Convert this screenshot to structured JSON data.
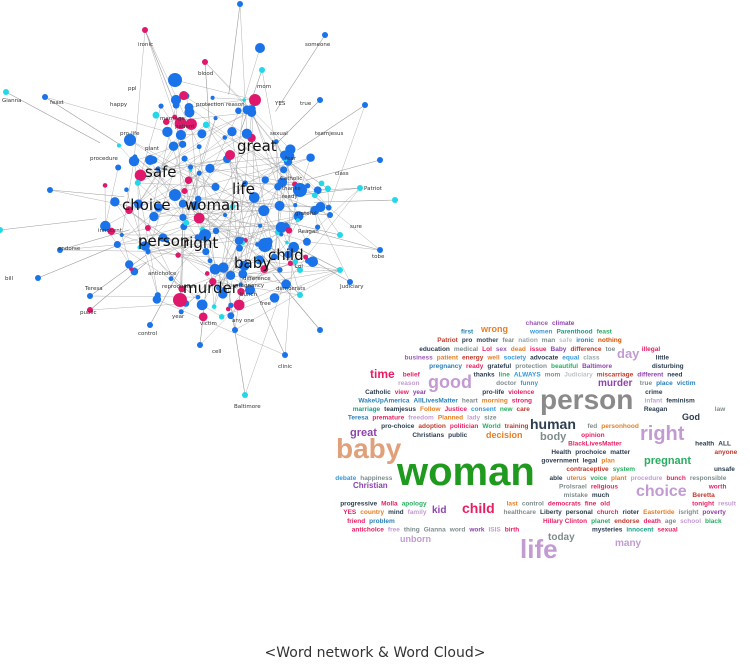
{
  "caption": "<Word network & Word Cloud>",
  "colors": {
    "node_blue": "#1a73e8",
    "node_pink": "#e0186c",
    "node_cyan": "#22d8e8",
    "edge": "#9a9a9a"
  },
  "network": {
    "large_labels": [
      "great",
      "safe",
      "life",
      "choice",
      "woman",
      "person",
      "right",
      "child",
      "baby",
      "murder"
    ],
    "small_labels": [
      "ironic",
      "someone",
      "mom",
      "blood",
      "Gianna",
      "feast",
      "happy",
      "ppl",
      "protection",
      "reason",
      "YES",
      "true",
      "marriage",
      "patient",
      "pro-life",
      "sexual",
      "teamjesus",
      "procedure",
      "plant",
      "fear",
      "Catholic",
      "class",
      "Patriot",
      "thanks",
      "ready",
      "Reagan",
      "Teresa",
      "bill",
      "innocent",
      "endorse",
      "sure",
      "tobe",
      "Lol",
      "Judiciary",
      "free",
      "democrats",
      "public",
      "year",
      "any one",
      "control",
      "cell",
      "clinic",
      "Baltimore",
      "anticholce",
      "reproductive",
      "bunch",
      "pregnancy",
      "victim",
      "difference",
      "grateful"
    ]
  },
  "wordcloud": {
    "words": [
      {
        "t": "chance",
        "c": "#9b59b6"
      },
      {
        "t": "climate",
        "c": "#8e44ad"
      },
      {
        "t": "first",
        "c": "#2980b9"
      },
      {
        "t": "women",
        "c": "#3498db"
      },
      {
        "t": "Parenthood",
        "c": "#16a085"
      },
      {
        "t": "feast",
        "c": "#27ae60"
      },
      {
        "t": "Patriot",
        "c": "#c0392b"
      },
      {
        "t": "pro",
        "c": "#2c3e50"
      },
      {
        "t": "mother",
        "c": "#34495e"
      },
      {
        "t": "fear",
        "c": "#7f8c8d"
      },
      {
        "t": "nation",
        "c": "#95a5a6"
      },
      {
        "t": "wrong",
        "c": "#e67e22"
      },
      {
        "t": "man",
        "c": "#7f8c8d"
      },
      {
        "t": "safe",
        "c": "#bdc3c7"
      },
      {
        "t": "ironic",
        "c": "#2980b9"
      },
      {
        "t": "nothing",
        "c": "#d35400"
      },
      {
        "t": "education",
        "c": "#2c3e50"
      },
      {
        "t": "medical",
        "c": "#7f8c8d"
      },
      {
        "t": "day",
        "c": "#c39bd3"
      },
      {
        "t": "Lol",
        "c": "#e91e63"
      },
      {
        "t": "sex",
        "c": "#9b59b6"
      },
      {
        "t": "dead",
        "c": "#e67e22"
      },
      {
        "t": "issue",
        "c": "#e91e63"
      },
      {
        "t": "Baby",
        "c": "#8e44ad"
      },
      {
        "t": "difference",
        "c": "#c0392b"
      },
      {
        "t": "toe",
        "c": "#7f8c8d"
      },
      {
        "t": "illegal",
        "c": "#e91e63"
      },
      {
        "t": "business",
        "c": "#9b59b6"
      },
      {
        "t": "patient",
        "c": "#e67e22"
      },
      {
        "t": "energy",
        "c": "#c0392b"
      },
      {
        "t": "time",
        "c": "#e91e63"
      },
      {
        "t": "well",
        "c": "#e67e22"
      },
      {
        "t": "society",
        "c": "#3498db"
      },
      {
        "t": "murder",
        "c": "#8e44ad"
      },
      {
        "t": "advocate",
        "c": "#2c3e50"
      },
      {
        "t": "equal",
        "c": "#3498db"
      },
      {
        "t": "class",
        "c": "#95a5a6"
      },
      {
        "t": "good",
        "c": "#c39bd3"
      },
      {
        "t": "little",
        "c": "#2c3e50"
      },
      {
        "t": "pregnancy",
        "c": "#2980b9"
      },
      {
        "t": "ready",
        "c": "#e91e63"
      },
      {
        "t": "grateful",
        "c": "#2c3e50"
      },
      {
        "t": "protection",
        "c": "#7f8c8d"
      },
      {
        "t": "beautiful",
        "c": "#27ae60"
      },
      {
        "t": "Baltimore",
        "c": "#8e44ad"
      },
      {
        "t": "person",
        "c": "#8a8a8a"
      },
      {
        "t": "disturbing",
        "c": "#2c3e50"
      },
      {
        "t": "belief",
        "c": "#e91e63"
      },
      {
        "t": "thanks",
        "c": "#2c3e50"
      },
      {
        "t": "line",
        "c": "#27ae60"
      },
      {
        "t": "ALWAYS",
        "c": "#3498db"
      },
      {
        "t": "mom",
        "c": "#7f8c8d"
      },
      {
        "t": "Judiciary",
        "c": "#bdc3c7"
      },
      {
        "t": "miscarriage",
        "c": "#c0392b"
      },
      {
        "t": "different",
        "c": "#8e44ad"
      },
      {
        "t": "need",
        "c": "#2c3e50"
      },
      {
        "t": "reason",
        "c": "#c39bd3"
      },
      {
        "t": "doctor",
        "c": "#7f8c8d"
      },
      {
        "t": "funny",
        "c": "#3498db"
      },
      {
        "t": "true",
        "c": "#7f8c8d"
      },
      {
        "t": "place",
        "c": "#2980b9"
      },
      {
        "t": "victim",
        "c": "#2980b9"
      },
      {
        "t": "Catholic",
        "c": "#2c3e50"
      },
      {
        "t": "view",
        "c": "#e91e63"
      },
      {
        "t": "year",
        "c": "#8e44ad"
      },
      {
        "t": "pro-life",
        "c": "#2c3e50"
      },
      {
        "t": "violence",
        "c": "#e91e63"
      },
      {
        "t": "crime",
        "c": "#2c3e50"
      },
      {
        "t": "WakeUpAmerica",
        "c": "#2980b9"
      },
      {
        "t": "AllLivesMatter",
        "c": "#2980b9"
      },
      {
        "t": "heart",
        "c": "#7f8c8d"
      },
      {
        "t": "morning",
        "c": "#e67e22"
      },
      {
        "t": "human",
        "c": "#2c3e50"
      },
      {
        "t": "strong",
        "c": "#e91e63"
      },
      {
        "t": "right",
        "c": "#c39bd3"
      },
      {
        "t": "great",
        "c": "#8e44ad"
      },
      {
        "t": "infant",
        "c": "#c39bd3"
      },
      {
        "t": "feminism",
        "c": "#2c3e50"
      },
      {
        "t": "marriage",
        "c": "#16a085"
      },
      {
        "t": "body",
        "c": "#7f8c8d"
      },
      {
        "t": "teamjesus",
        "c": "#2c3e50"
      },
      {
        "t": "God",
        "c": "#2c3e50"
      },
      {
        "t": "Follow",
        "c": "#e67e22"
      },
      {
        "t": "Justice",
        "c": "#e91e63"
      },
      {
        "t": "consent",
        "c": "#3498db"
      },
      {
        "t": "new",
        "c": "#27ae60"
      },
      {
        "t": "care",
        "c": "#c0392b"
      },
      {
        "t": "baby",
        "c": "#e0a07a"
      },
      {
        "t": "Reagan",
        "c": "#2c3e50"
      },
      {
        "t": "law",
        "c": "#7f8c8d"
      },
      {
        "t": "Teresa",
        "c": "#2980b9"
      },
      {
        "t": "decision",
        "c": "#e67e22"
      },
      {
        "t": "premature",
        "c": "#e91e63"
      },
      {
        "t": "freedom",
        "c": "#c39bd3"
      },
      {
        "t": "Planned",
        "c": "#e67e22"
      },
      {
        "t": "lady",
        "c": "#c39bd3"
      },
      {
        "t": "size",
        "c": "#7f8c8d"
      },
      {
        "t": "pro-choice",
        "c": "#2c3e50"
      },
      {
        "t": "adoption",
        "c": "#c0392b"
      },
      {
        "t": "politician",
        "c": "#e91e63"
      },
      {
        "t": "World",
        "c": "#27ae60"
      },
      {
        "t": "training",
        "c": "#c0392b"
      },
      {
        "t": "fed",
        "c": "#7f8c8d"
      },
      {
        "t": "personhood",
        "c": "#e67e22"
      },
      {
        "t": "Christians",
        "c": "#2c3e50"
      },
      {
        "t": "pregnant",
        "c": "#27ae60"
      },
      {
        "t": "public",
        "c": "#2c3e50"
      },
      {
        "t": "opinion",
        "c": "#e91e63"
      },
      {
        "t": "BlackLivesMatter",
        "c": "#e91e63"
      },
      {
        "t": "health",
        "c": "#2c3e50"
      },
      {
        "t": "ALL",
        "c": "#2c3e50"
      },
      {
        "t": "Health",
        "c": "#2c3e50"
      },
      {
        "t": "woman",
        "c": "#1f9a1f"
      },
      {
        "t": "prochoice",
        "c": "#2c3e50"
      },
      {
        "t": "matter",
        "c": "#2c3e50"
      },
      {
        "t": "anyone",
        "c": "#c0392b"
      },
      {
        "t": "government",
        "c": "#2c3e50"
      },
      {
        "t": "legal",
        "c": "#2c3e50"
      },
      {
        "t": "choice",
        "c": "#c39bd3"
      },
      {
        "t": "Christian",
        "c": "#8e44ad"
      },
      {
        "t": "plan",
        "c": "#e67e22"
      },
      {
        "t": "contraceptive",
        "c": "#c0392b"
      },
      {
        "t": "system",
        "c": "#27ae60"
      },
      {
        "t": "unsafe",
        "c": "#2c3e50"
      },
      {
        "t": "debate",
        "c": "#3498db"
      },
      {
        "t": "happiness",
        "c": "#7f8c8d"
      },
      {
        "t": "able",
        "c": "#2c3e50"
      },
      {
        "t": "uterus",
        "c": "#e67e22"
      },
      {
        "t": "voice",
        "c": "#27ae60"
      },
      {
        "t": "plant",
        "c": "#e67e22"
      },
      {
        "t": "procedure",
        "c": "#c39bd3"
      },
      {
        "t": "bunch",
        "c": "#e91e63"
      },
      {
        "t": "responsible",
        "c": "#7f8c8d"
      },
      {
        "t": "Prolsrael",
        "c": "#7f8c8d"
      },
      {
        "t": "religious",
        "c": "#e91e63"
      },
      {
        "t": "kid",
        "c": "#8e44ad"
      },
      {
        "t": "child",
        "c": "#e91e63"
      },
      {
        "t": "worth",
        "c": "#e91e63"
      },
      {
        "t": "mistake",
        "c": "#7f8c8d"
      },
      {
        "t": "much",
        "c": "#2c3e50"
      },
      {
        "t": "Beretta",
        "c": "#c0392b"
      },
      {
        "t": "progressive",
        "c": "#2c3e50"
      },
      {
        "t": "Molla",
        "c": "#e91e63"
      },
      {
        "t": "apology",
        "c": "#27ae60"
      },
      {
        "t": "last",
        "c": "#e67e22"
      },
      {
        "t": "control",
        "c": "#7f8c8d"
      },
      {
        "t": "democrats",
        "c": "#e91e63"
      },
      {
        "t": "fine",
        "c": "#e91e63"
      },
      {
        "t": "old",
        "c": "#e91e63"
      },
      {
        "t": "tonight",
        "c": "#e91e63"
      },
      {
        "t": "result",
        "c": "#c39bd3"
      },
      {
        "t": "YES",
        "c": "#e91e63"
      },
      {
        "t": "country",
        "c": "#e67e22"
      },
      {
        "t": "mind",
        "c": "#2c3e50"
      },
      {
        "t": "family",
        "c": "#c39bd3"
      },
      {
        "t": "healthcare",
        "c": "#7f8c8d"
      },
      {
        "t": "Liberty",
        "c": "#2c3e50"
      },
      {
        "t": "personal",
        "c": "#2c3e50"
      },
      {
        "t": "today",
        "c": "#7f8c8d"
      },
      {
        "t": "church",
        "c": "#e91e63"
      },
      {
        "t": "rioter",
        "c": "#2c3e50"
      },
      {
        "t": "Eastertide",
        "c": "#e67e22"
      },
      {
        "t": "unborn",
        "c": "#c39bd3"
      },
      {
        "t": "isright",
        "c": "#7f8c8d"
      },
      {
        "t": "many",
        "c": "#c39bd3"
      },
      {
        "t": "poverty",
        "c": "#8e44ad"
      },
      {
        "t": "friend",
        "c": "#e91e63"
      },
      {
        "t": "life",
        "c": "#c39bd3"
      },
      {
        "t": "problem",
        "c": "#2980b9"
      },
      {
        "t": "Hillary Clinton",
        "c": "#e91e63"
      },
      {
        "t": "planet",
        "c": "#27ae60"
      },
      {
        "t": "endorse",
        "c": "#c0392b"
      },
      {
        "t": "death",
        "c": "#e91e63"
      },
      {
        "t": "age",
        "c": "#7f8c8d"
      },
      {
        "t": "school",
        "c": "#c39bd3"
      },
      {
        "t": "black",
        "c": "#27ae60"
      },
      {
        "t": "anticholce",
        "c": "#e91e63"
      },
      {
        "t": "free",
        "c": "#c39bd3"
      },
      {
        "t": "thing",
        "c": "#7f8c8d"
      },
      {
        "t": "Gianna",
        "c": "#7f8c8d"
      },
      {
        "t": "word",
        "c": "#7f8c8d"
      },
      {
        "t": "work",
        "c": "#8e44ad"
      },
      {
        "t": "ISIS",
        "c": "#c39bd3"
      },
      {
        "t": "birth",
        "c": "#e91e63"
      },
      {
        "t": "mysteries",
        "c": "#2c3e50"
      },
      {
        "t": "innocent",
        "c": "#16a085"
      },
      {
        "t": "sexual",
        "c": "#e91e63"
      }
    ]
  }
}
